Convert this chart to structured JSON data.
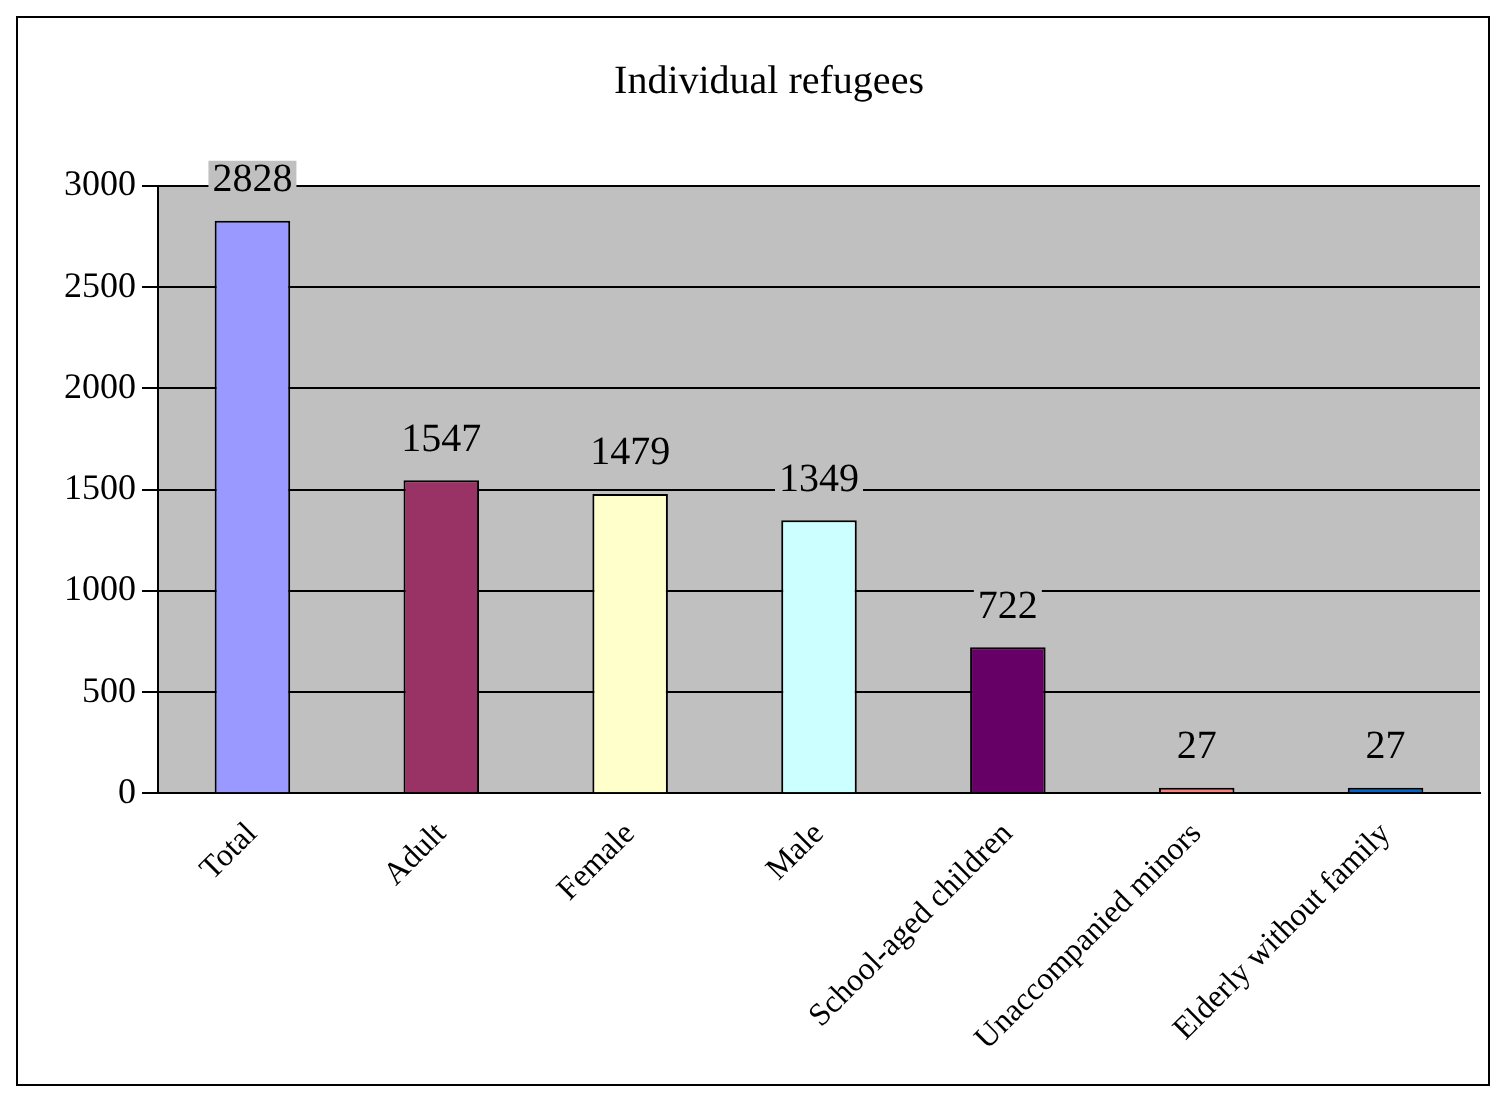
{
  "chart_data": {
    "type": "bar",
    "title": "Individual refugees",
    "categories": [
      "Total",
      "Adult",
      "Female",
      "Male",
      "School-aged children",
      "Unaccompanied minors",
      "Elderly without family"
    ],
    "values": [
      2828,
      1547,
      1479,
      1349,
      722,
      27,
      27
    ],
    "colors": [
      "#9999ff",
      "#993366",
      "#ffffcc",
      "#ccffff",
      "#660066",
      "#ff8080",
      "#0066cc"
    ],
    "ylim": [
      0,
      3000
    ],
    "yticks": [
      0,
      500,
      1000,
      1500,
      2000,
      2500,
      3000
    ],
    "grid": "y",
    "legend": false,
    "data_labels": true
  }
}
